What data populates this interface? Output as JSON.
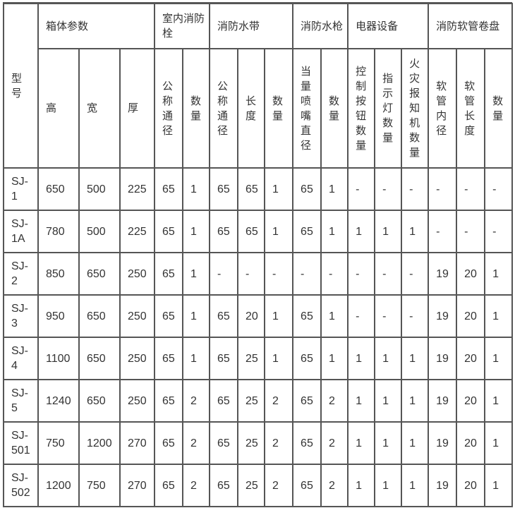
{
  "header": {
    "model": "型号",
    "groups": [
      "箱体参数",
      "室内消防栓",
      "消防水带",
      "消防水枪",
      "电器设备",
      "消防软管卷盘"
    ],
    "subcolumns": [
      "高",
      "宽",
      "厚",
      "公称通径",
      "数量",
      "公称通径",
      "长度",
      "数量",
      "当量喷嘴直径",
      "数量",
      "控制按钮数量",
      "指示灯数量",
      "火灾报知机数量",
      "软管内径",
      "软管长度",
      "数量"
    ]
  },
  "rows": [
    [
      "SJ-1",
      "650",
      "500",
      "225",
      "65",
      "1",
      "65",
      "65",
      "1",
      "65",
      "1",
      "-",
      "-",
      "-",
      "-",
      "-",
      "-"
    ],
    [
      "SJ-1A",
      "780",
      "500",
      "225",
      "65",
      "1",
      "65",
      "65",
      "1",
      "65",
      "1",
      "1",
      "1",
      "1",
      "-",
      "-",
      "-"
    ],
    [
      "SJ-2",
      "850",
      "650",
      "250",
      "65",
      "1",
      "-",
      "-",
      "-",
      "-",
      "-",
      "-",
      "-",
      "-",
      "19",
      "20",
      "1"
    ],
    [
      "SJ-3",
      "950",
      "650",
      "250",
      "65",
      "1",
      "65",
      "20",
      "1",
      "65",
      "1",
      "-",
      "-",
      "-",
      "19",
      "20",
      "1"
    ],
    [
      "SJ-4",
      "1100",
      "650",
      "250",
      "65",
      "1",
      "65",
      "25",
      "1",
      "65",
      "1",
      "1",
      "1",
      "1",
      "19",
      "20",
      "1"
    ],
    [
      "SJ-5",
      "1240",
      "650",
      "250",
      "65",
      "2",
      "65",
      "25",
      "2",
      "65",
      "2",
      "1",
      "1",
      "1",
      "19",
      "20",
      "1"
    ],
    [
      "SJ-501",
      "750",
      "1200",
      "270",
      "65",
      "2",
      "65",
      "25",
      "2",
      "65",
      "2",
      "1",
      "1",
      "1",
      "19",
      "20",
      "1"
    ],
    [
      "SJ-502",
      "1200",
      "750",
      "270",
      "65",
      "2",
      "65",
      "25",
      "2",
      "65",
      "2",
      "1",
      "1",
      "1",
      "19",
      "20",
      "1"
    ]
  ]
}
